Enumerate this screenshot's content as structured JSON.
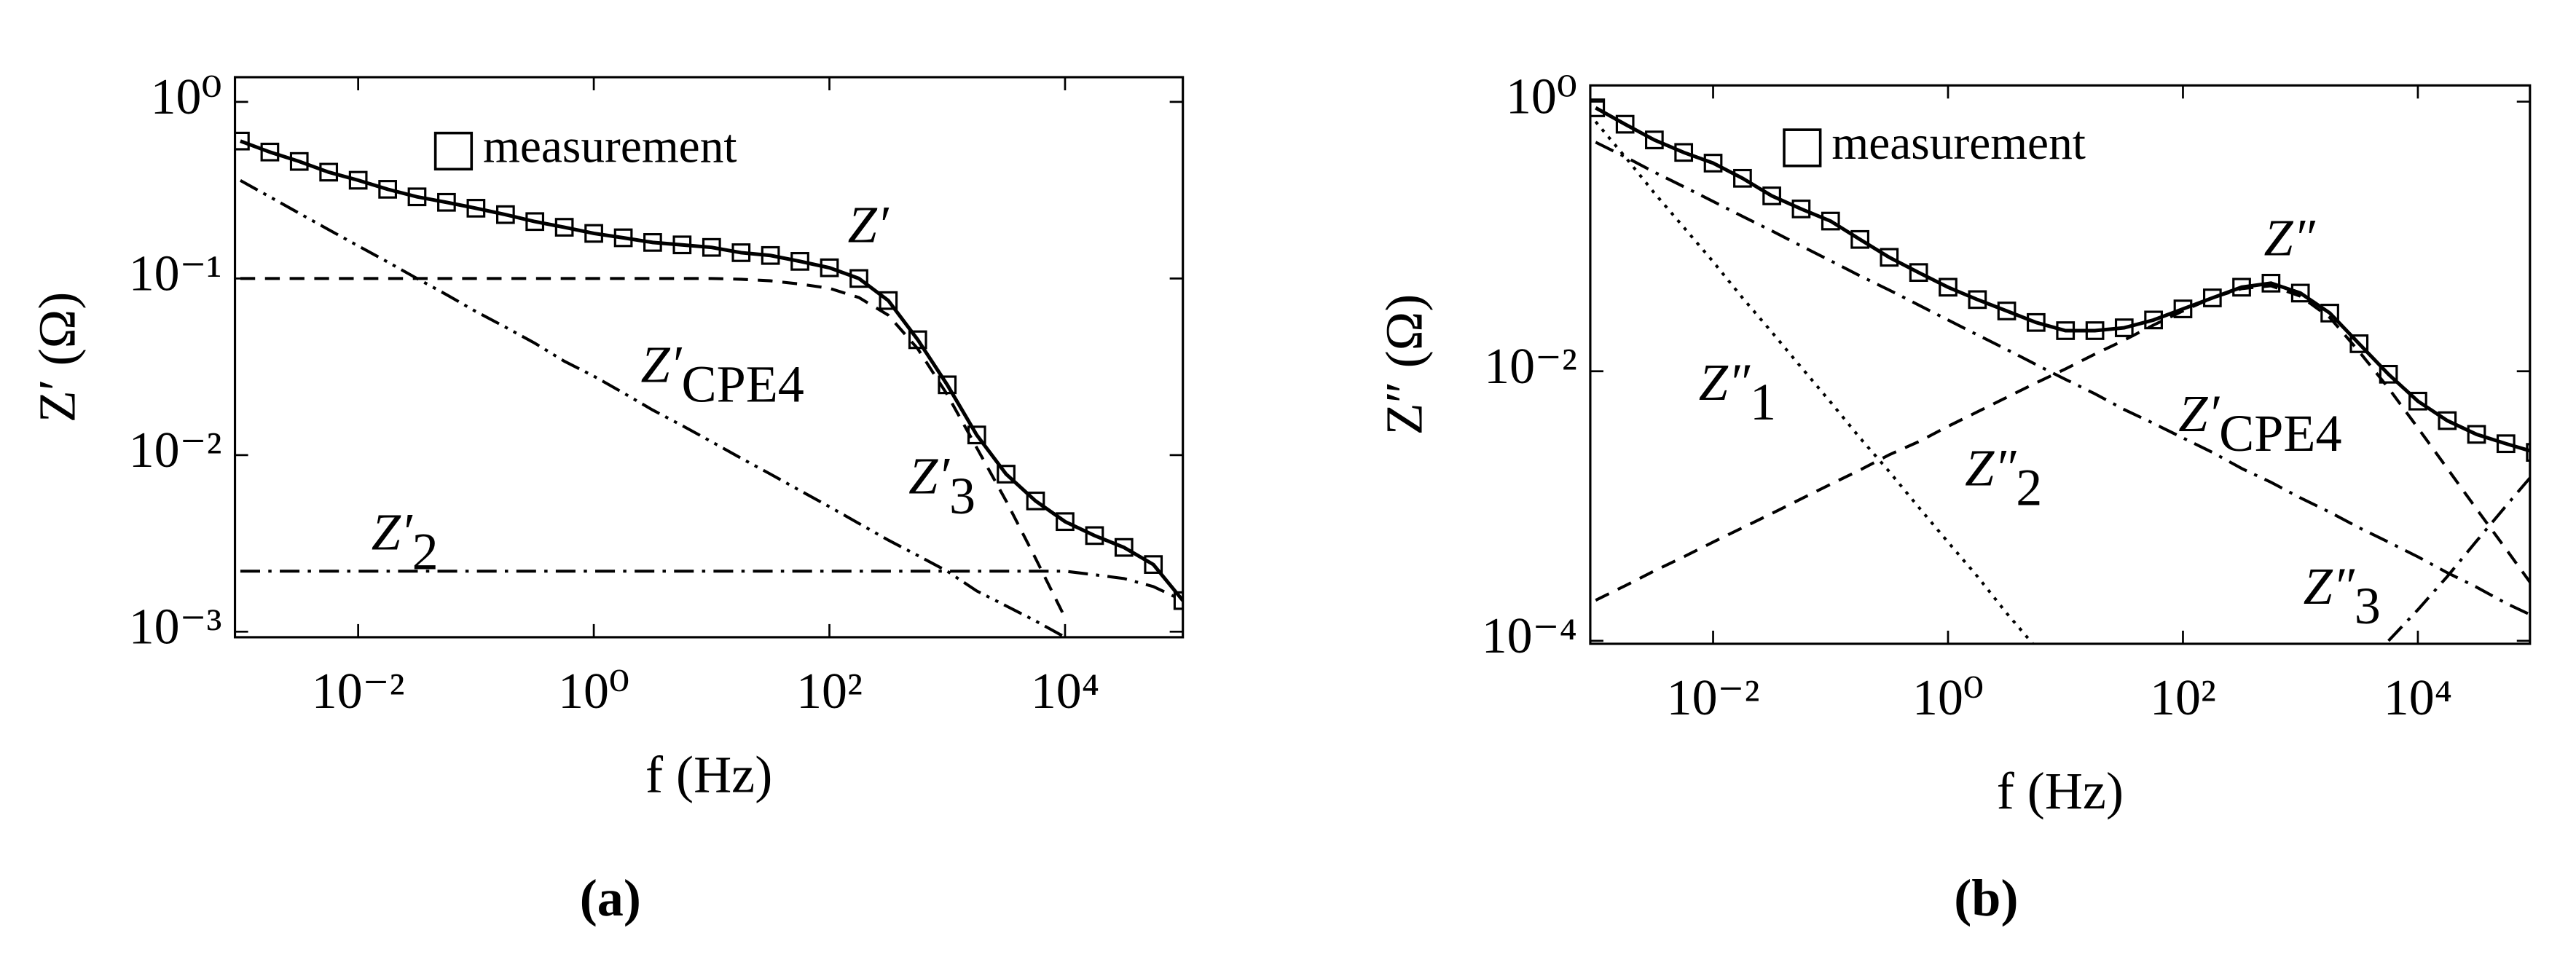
{
  "chart_data": [
    {
      "type": "line",
      "label": "(a)",
      "xlabel": "f (Hz)",
      "ylabel": "Z′ (Ω)",
      "log_x": true,
      "log_y": true,
      "grid": false,
      "legend": "top",
      "xlim": [
        0.0009,
        100000
      ],
      "ylim": [
        0.00093,
        1.38
      ],
      "xticks": [
        {
          "value": 0.01,
          "label": "10⁻²"
        },
        {
          "value": 1,
          "label": "10⁰"
        },
        {
          "value": 100,
          "label": "10²"
        },
        {
          "value": 10000,
          "label": "10⁴"
        }
      ],
      "yticks": [
        {
          "value": 1,
          "label": "10⁰"
        },
        {
          "value": 0.1,
          "label": "10⁻¹"
        },
        {
          "value": 0.01,
          "label": "10⁻²"
        },
        {
          "value": 0.001,
          "label": "10⁻³"
        }
      ],
      "x": [
        0.001,
        0.00178,
        0.00316,
        0.00562,
        0.01,
        0.0178,
        0.0316,
        0.0562,
        0.1,
        0.178,
        0.316,
        0.562,
        1,
        1.78,
        3.16,
        5.62,
        10,
        17.8,
        31.6,
        56.2,
        100,
        178,
        316,
        562,
        1000,
        1780,
        3160,
        5620,
        10000,
        17800,
        31600,
        56200,
        100000
      ],
      "series": [
        {
          "name": "measurement",
          "marker": "square",
          "color": "#000000",
          "values": [
            0.6,
            0.52,
            0.46,
            0.4,
            0.36,
            0.32,
            0.29,
            0.27,
            0.25,
            0.23,
            0.21,
            0.195,
            0.18,
            0.17,
            0.16,
            0.155,
            0.15,
            0.14,
            0.135,
            0.125,
            0.115,
            0.1,
            0.075,
            0.045,
            0.025,
            0.013,
            0.0078,
            0.0055,
            0.0042,
            0.0035,
            0.003,
            0.0024,
            0.0015
          ]
        },
        {
          "style": "solid",
          "color": "#000000",
          "values": [
            0.6,
            0.52,
            0.46,
            0.4,
            0.36,
            0.32,
            0.29,
            0.27,
            0.25,
            0.23,
            0.21,
            0.195,
            0.18,
            0.17,
            0.16,
            0.155,
            0.15,
            0.14,
            0.135,
            0.125,
            0.115,
            0.1,
            0.075,
            0.045,
            0.025,
            0.013,
            0.0078,
            0.0055,
            0.0042,
            0.0035,
            0.003,
            0.0024,
            0.0015
          ]
        },
        {
          "style": "dashdotdot",
          "color": "#000000",
          "values": [
            0.359,
            0.29,
            0.234,
            0.189,
            0.153,
            0.124,
            0.1,
            0.081,
            0.065,
            0.053,
            0.043,
            0.034,
            0.028,
            0.0225,
            0.018,
            0.0147,
            0.0119,
            0.0096,
            0.0078,
            0.0063,
            0.0051,
            0.0041,
            0.0033,
            0.0027,
            0.0022,
            0.0017,
            0.0014,
            0.00115,
            0.00093,
            null,
            null,
            null,
            null
          ]
        },
        {
          "style": "dashdot",
          "color": "#000000",
          "values": [
            0.0022,
            0.0022,
            0.0022,
            0.0022,
            0.0022,
            0.0022,
            0.0022,
            0.0022,
            0.0022,
            0.0022,
            0.0022,
            0.0022,
            0.0022,
            0.0022,
            0.0022,
            0.0022,
            0.0022,
            0.0022,
            0.0022,
            0.0022,
            0.0022,
            0.0022,
            0.0022,
            0.0022,
            0.0022,
            0.0022,
            0.0022,
            0.0022,
            0.0022,
            0.0021,
            0.002,
            0.0018,
            0.0015
          ]
        },
        {
          "style": "dashed",
          "color": "#000000",
          "values": [
            0.1,
            0.1,
            0.1,
            0.1,
            0.1,
            0.1,
            0.1,
            0.1,
            0.1,
            0.1,
            0.1,
            0.1,
            0.1,
            0.1,
            0.1,
            0.1,
            0.1,
            0.099,
            0.097,
            0.093,
            0.088,
            0.078,
            0.062,
            0.04,
            0.022,
            0.011,
            0.0055,
            0.0026,
            0.0012,
            null,
            null,
            null,
            null
          ]
        }
      ],
      "annotations": [
        {
          "text": "Z′"
        },
        {
          "text": "Z′",
          "sub": "CPE4"
        },
        {
          "text": "Z′",
          "sub": "3"
        },
        {
          "text": "Z′",
          "sub": "2"
        }
      ]
    },
    {
      "type": "line",
      "label": "(b)",
      "xlabel": "f (Hz)",
      "ylabel": "Z″ (Ω)",
      "log_x": true,
      "log_y": true,
      "grid": false,
      "legend": "top",
      "xlim": [
        0.0009,
        90000
      ],
      "ylim": [
        9.5e-05,
        1.32
      ],
      "xticks": [
        {
          "value": 0.01,
          "label": "10⁻²"
        },
        {
          "value": 1,
          "label": "10⁰"
        },
        {
          "value": 100,
          "label": "10²"
        },
        {
          "value": 10000,
          "label": "10⁴"
        }
      ],
      "yticks": [
        {
          "value": 1,
          "label": "10⁰"
        },
        {
          "value": 0.01,
          "label": "10⁻²"
        },
        {
          "value": 0.0001,
          "label": "10⁻⁴"
        }
      ],
      "x": [
        0.001,
        0.00178,
        0.00316,
        0.00562,
        0.01,
        0.0178,
        0.0316,
        0.0562,
        0.1,
        0.178,
        0.316,
        0.562,
        1,
        1.78,
        3.16,
        5.62,
        10,
        17.8,
        31.6,
        56.2,
        100,
        178,
        316,
        562,
        1000,
        1780,
        3160,
        5620,
        10000,
        17800,
        31600,
        56200,
        100000
      ],
      "series": [
        {
          "name": "measurement",
          "marker": "square",
          "color": "#000000",
          "values": [
            0.9,
            0.68,
            0.52,
            0.42,
            0.35,
            0.27,
            0.2,
            0.16,
            0.13,
            0.095,
            0.07,
            0.054,
            0.042,
            0.034,
            0.028,
            0.023,
            0.02,
            0.02,
            0.021,
            0.024,
            0.029,
            0.035,
            0.042,
            0.045,
            0.038,
            0.027,
            0.016,
            0.0095,
            0.006,
            0.0043,
            0.0034,
            0.0029,
            0.0025
          ]
        },
        {
          "style": "solid",
          "color": "#000000",
          "values": [
            0.9,
            0.68,
            0.52,
            0.42,
            0.35,
            0.27,
            0.2,
            0.16,
            0.13,
            0.095,
            0.07,
            0.054,
            0.042,
            0.034,
            0.028,
            0.023,
            0.02,
            0.02,
            0.021,
            0.024,
            0.029,
            0.035,
            0.042,
            0.045,
            0.038,
            0.027,
            0.016,
            0.0095,
            0.006,
            0.0043,
            0.0034,
            0.0029,
            0.0025
          ]
        },
        {
          "style": "dotted",
          "color": "#000000",
          "values": [
            0.71,
            0.39,
            0.21,
            0.117,
            0.065,
            0.035,
            0.0195,
            0.0107,
            0.0059,
            0.0032,
            0.0018,
            0.00098,
            0.00054,
            0.0003,
            0.00016,
            8.9e-05,
            null,
            null,
            null,
            null,
            null,
            null,
            null,
            null,
            null,
            null,
            null,
            null,
            null,
            null,
            null,
            null,
            null
          ]
        },
        {
          "style": "dashed",
          "color": "#000000",
          "values": [
            0.0002,
            0.000256,
            0.00033,
            0.00042,
            0.00054,
            0.00069,
            0.00088,
            0.00113,
            0.00145,
            0.00185,
            0.0024,
            0.003,
            0.0039,
            0.005,
            0.0064,
            0.0082,
            0.0104,
            0.0134,
            0.017,
            0.022,
            0.028,
            0.035,
            0.041,
            0.043,
            0.036,
            0.025,
            0.014,
            0.0075,
            0.0038,
            0.0019,
            0.00095,
            0.00048,
            0.00024
          ]
        },
        {
          "style": "dashdot",
          "color": "#000000",
          "values": [
            0.5,
            0.39,
            0.3,
            0.234,
            0.182,
            0.141,
            0.11,
            0.085,
            0.066,
            0.051,
            0.04,
            0.031,
            0.024,
            0.0186,
            0.0145,
            0.0112,
            0.0087,
            0.0068,
            0.0052,
            0.0041,
            0.0032,
            0.0025,
            0.0019,
            0.0015,
            0.00115,
            0.0009,
            0.00069,
            0.00054,
            0.00042,
            0.00032,
            0.00025,
            0.00019,
            0.00015
          ]
        },
        {
          "style": "dashdot",
          "color": "#000000",
          "values": [
            null,
            null,
            null,
            null,
            null,
            null,
            null,
            null,
            null,
            null,
            null,
            null,
            null,
            null,
            null,
            null,
            null,
            null,
            null,
            null,
            null,
            null,
            null,
            null,
            null,
            null,
            null,
            0.0001,
            0.00017,
            0.0003,
            0.00055,
            0.001,
            0.0018
          ]
        }
      ],
      "annotations": [
        {
          "text": "Z″"
        },
        {
          "text": "Z′",
          "sub": "CPE4"
        },
        {
          "text": "Z″",
          "sub": "1"
        },
        {
          "text": "Z″",
          "sub": "2"
        },
        {
          "text": "Z″",
          "sub": "3"
        }
      ]
    }
  ]
}
